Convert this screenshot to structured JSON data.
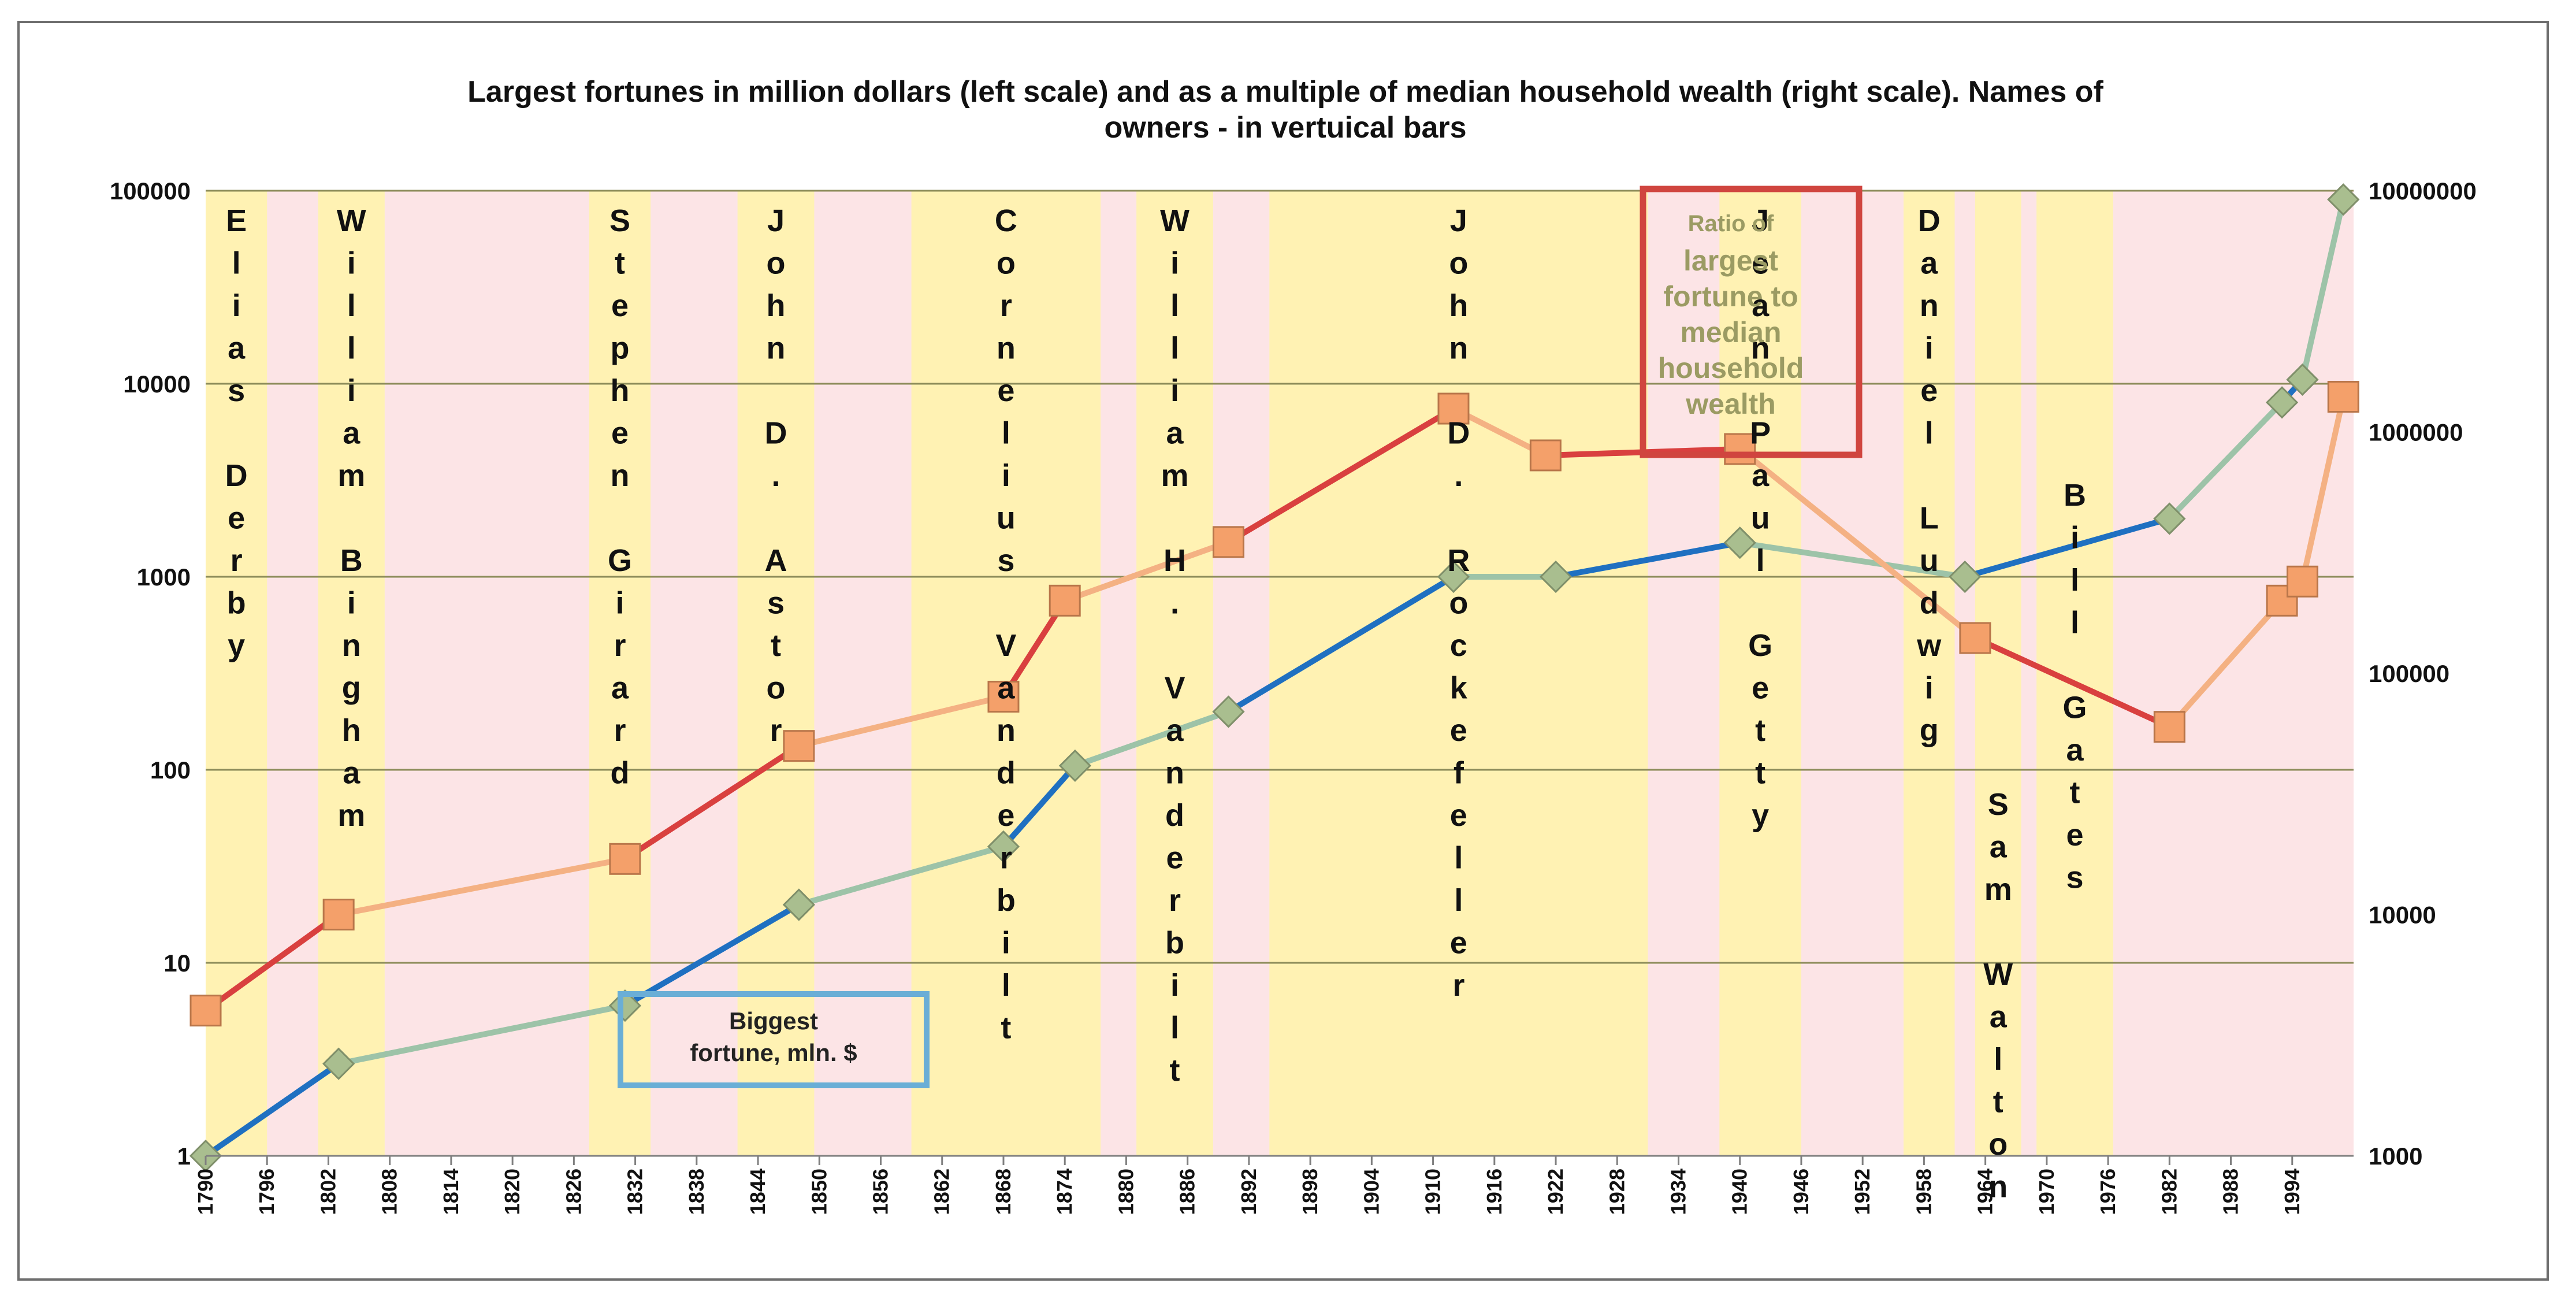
{
  "chart_data": {
    "type": "line",
    "title_lines": [
      "Largest fortunes in million dollars (left scale) and as a multiple of median household wealth (right scale). Names of",
      "owners - in vertuical bars"
    ],
    "x_ticks": [
      "1790",
      "1796",
      "1802",
      "1808",
      "1814",
      "1820",
      "1826",
      "1832",
      "1838",
      "1844",
      "1850",
      "1856",
      "1862",
      "1868",
      "1874",
      "1880",
      "1886",
      "1892",
      "1898",
      "1904",
      "1910",
      "1916",
      "1922",
      "1928",
      "1934",
      "1940",
      "1946",
      "1952",
      "1958",
      "1964",
      "1970",
      "1976",
      "1982",
      "1988",
      "1994"
    ],
    "xlim": [
      1790,
      2000
    ],
    "left_axis": {
      "scale": "log",
      "ylim": [
        1,
        100000
      ],
      "ticks": [
        "1",
        "10",
        "100",
        "1000",
        "10000",
        "100000"
      ]
    },
    "right_axis": {
      "scale": "log",
      "ylim": [
        1000,
        10000000
      ],
      "ticks": [
        "1000",
        "10000",
        "100000",
        "1000000",
        "10000000"
      ]
    },
    "series": [
      {
        "name": "Biggest fortune, mln. $",
        "axis": "left",
        "x": [
          1790,
          1803,
          1831,
          1848,
          1868,
          1875,
          1890,
          1912,
          1922,
          1940,
          1962,
          1982,
          1993,
          1995,
          1999
        ],
        "values": [
          1,
          3,
          6,
          20,
          40,
          105,
          200,
          1000,
          1000,
          1500,
          1000,
          2000,
          8000,
          10500,
          90000
        ],
        "line_colors": [
          "#1f70c1",
          "#9dc3a8"
        ],
        "marker": "diamond",
        "marker_color": "#a9be8f"
      },
      {
        "name": "Ratio of largest fortune to median household wealth",
        "axis": "right",
        "x": [
          1790,
          1803,
          1831,
          1848,
          1868,
          1874,
          1890,
          1912,
          1921,
          1940,
          1963,
          1982,
          1993,
          1995,
          1999
        ],
        "values": [
          4000,
          10000,
          17000,
          50000,
          80000,
          200000,
          350000,
          1250000,
          800000,
          850000,
          140000,
          60000,
          200000,
          240000,
          1400000
        ],
        "line_colors": [
          "#d9403f",
          "#f4b183"
        ],
        "marker": "square",
        "marker_color": "#f4a06a"
      }
    ],
    "owner_bars": [
      {
        "name": "Elias Derby",
        "start": 1790,
        "end": 1796,
        "words": [
          "Elias",
          "Derby"
        ]
      },
      {
        "name": "William Bingham",
        "start": 1801,
        "end": 1807.5,
        "words": [
          "William",
          "Bingham"
        ]
      },
      {
        "name": "Stephen Girard",
        "start": 1827.5,
        "end": 1833.5,
        "words": [
          "Stephen",
          "Girard"
        ]
      },
      {
        "name": "John D. Astor",
        "start": 1842,
        "end": 1849.5,
        "words": [
          "John",
          "D.",
          "Astor"
        ]
      },
      {
        "name": "Cornelius Vanderbilt",
        "start": 1859,
        "end": 1877.5,
        "words": [
          "Cornelius",
          "Vanderbilt"
        ]
      },
      {
        "name": "William H. Vanderbilt",
        "start": 1881,
        "end": 1888.5,
        "words": [
          "William",
          "H.",
          "Vanderbilt"
        ]
      },
      {
        "name": "John D. Rockefeller",
        "start": 1894,
        "end": 1931,
        "words": [
          "John",
          "D.",
          "Rockefeller"
        ]
      },
      {
        "name": "Jean Paul Getty",
        "start": 1938,
        "end": 1946,
        "words": [
          "Jean",
          "Paul",
          "Getty"
        ]
      },
      {
        "name": "Daniel Ludwig",
        "start": 1956,
        "end": 1961,
        "words": [
          "Daniel",
          "Ludwig"
        ]
      },
      {
        "name": "Sam Walton",
        "start": 1963,
        "end": 1967.5,
        "words": [
          "Sam",
          "Walton"
        ]
      },
      {
        "name": "Bill Gates",
        "start": 1969,
        "end": 1976.5,
        "words": [
          "Bill",
          "Gates"
        ]
      }
    ],
    "annotations": {
      "fortune_label": [
        "Biggest",
        "fortune, mln. $"
      ],
      "ratio_label": [
        "Ratio of",
        "largest",
        "fortune to",
        "median",
        "household",
        "wealth"
      ]
    },
    "colors": {
      "owner_bar": "#fff2b3",
      "gap_bar": "#fce4e6",
      "grid": "#8c8c5a",
      "fortune_box": "#6aaed6",
      "ratio_box": "#d0453f"
    }
  }
}
